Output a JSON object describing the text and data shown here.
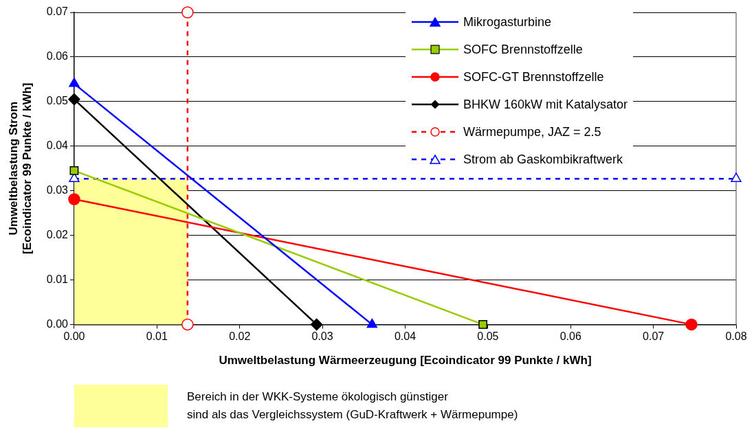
{
  "chart_data": {
    "type": "line",
    "xlabel": "Umweltbelastung Wärmeerzeugung [Ecoindicator 99 Punkte / kWh]",
    "ylabel": "Umweltbelastung Strom\n[Ecoindicator 99 Punkte / kWh]",
    "xlim": [
      0,
      0.08
    ],
    "xticks": [
      {
        "value": 0,
        "label": "0.00"
      },
      0.01,
      0.02,
      0.03,
      0.04,
      0.05,
      0.06,
      0.07,
      0.08
    ],
    "ylim": [
      0,
      0.07
    ],
    "yticks": [
      {
        "value": 0,
        "label": "0.00"
      },
      0.01,
      0.02,
      0.03,
      0.04,
      0.05,
      0.06,
      0.07
    ],
    "grid": "y",
    "legend": "top right",
    "annotations": [
      "Bereich in der WKK-Systeme ökologisch günstiger\nsind als das Vergleichssystem (GuD-Kraftwerk + Wärmepumpe)"
    ],
    "series": [
      {
        "type": "area",
        "color": "#ffff99",
        "x": [
          0,
          0.0137
        ],
        "values": [
          0.0327,
          0.0327
        ],
        "marker": "none"
      },
      {
        "name": "Mikrogasturbine",
        "color": "#0000ff",
        "x": [
          0,
          0.036
        ],
        "values": [
          0.054,
          0
        ],
        "marker": "triangle",
        "line_style": "solid"
      },
      {
        "name": "SOFC Brennstoffzelle",
        "color": "#99cc00",
        "x": [
          0,
          0.0494
        ],
        "values": [
          0.0345,
          0
        ],
        "marker": "square",
        "line_style": "solid"
      },
      {
        "name": "SOFC-GT Brennstoffzelle",
        "color": "#ff0000",
        "x": [
          0,
          0.0746
        ],
        "values": [
          0.0281,
          0
        ],
        "marker": "circle",
        "line_style": "solid"
      },
      {
        "name": "BHKW  160kW  mit Katalysator",
        "color": "#000000",
        "x": [
          0,
          0.0293
        ],
        "values": [
          0.0505,
          0
        ],
        "marker": "diamond",
        "line_style": "solid"
      },
      {
        "name": "Wärmepumpe, JAZ = 2.5",
        "color": "#ff0000",
        "x": [
          0.0137,
          0.0137
        ],
        "values": [
          0,
          0.07
        ],
        "marker": "circle",
        "line_style": "dashed"
      },
      {
        "name": "Strom ab Gaskombikraftwerk",
        "color": "#0000ff",
        "x": [
          0,
          0.08
        ],
        "values": [
          0.0327,
          0.0327
        ],
        "marker": "triangle",
        "line_style": "dashed"
      }
    ]
  }
}
